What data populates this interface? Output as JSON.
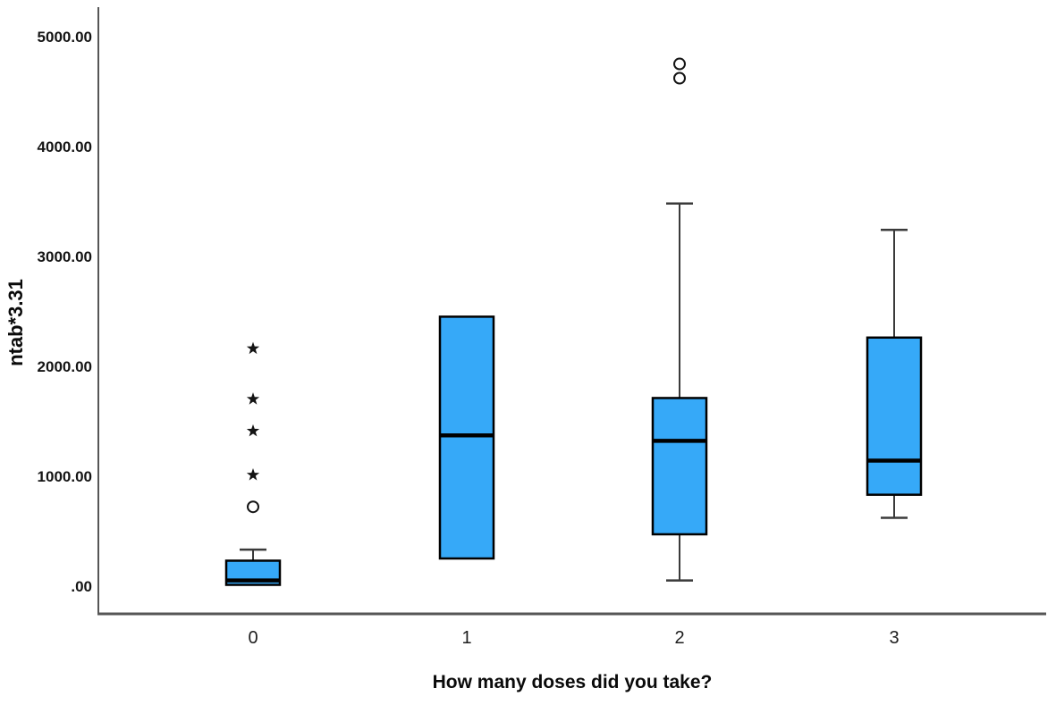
{
  "page": {
    "background_color": "#ffffff",
    "description": "SPSS-style boxplot figure"
  },
  "chart_data": {
    "type": "box",
    "title": "",
    "xlabel": "How many doses did you take?",
    "ylabel": "ntab*3.31",
    "categories": [
      "0",
      "1",
      "2",
      "3"
    ],
    "y_tick_labels": [
      ".00",
      "1000.00",
      "2000.00",
      "3000.00",
      "4000.00",
      "5000.00"
    ],
    "y_tick_values": [
      0,
      1000,
      2000,
      3000,
      4000,
      5000
    ],
    "ylim": [
      0,
      5200
    ],
    "grid": false,
    "legend": "none",
    "boxes": [
      {
        "category": "0",
        "q1": 20,
        "median": 60,
        "q3": 240,
        "whisker_low": 20,
        "whisker_high": 340,
        "outliers_circle": [
          730
        ],
        "outliers_star": [
          1020,
          1420,
          1710,
          2170
        ]
      },
      {
        "category": "1",
        "q1": 260,
        "median": 1380,
        "q3": 2460,
        "whisker_low": 260,
        "whisker_high": 2460,
        "outliers_circle": [],
        "outliers_star": []
      },
      {
        "category": "2",
        "q1": 480,
        "median": 1330,
        "q3": 1720,
        "whisker_low": 60,
        "whisker_high": 3490,
        "outliers_circle": [
          4630,
          4760
        ],
        "outliers_star": []
      },
      {
        "category": "3",
        "q1": 840,
        "median": 1150,
        "q3": 2270,
        "whisker_low": 630,
        "whisker_high": 3250,
        "outliers_circle": [],
        "outliers_star": []
      }
    ],
    "colors": {
      "box_fill": "#36a9f8",
      "box_stroke": "#000000",
      "median_line": "#000000",
      "whisker": "#3a3a3a",
      "outlier_marker": "#141414",
      "axis_line": "#565656",
      "tick_text": "#141414",
      "title_text": "#0a0a0a"
    }
  }
}
